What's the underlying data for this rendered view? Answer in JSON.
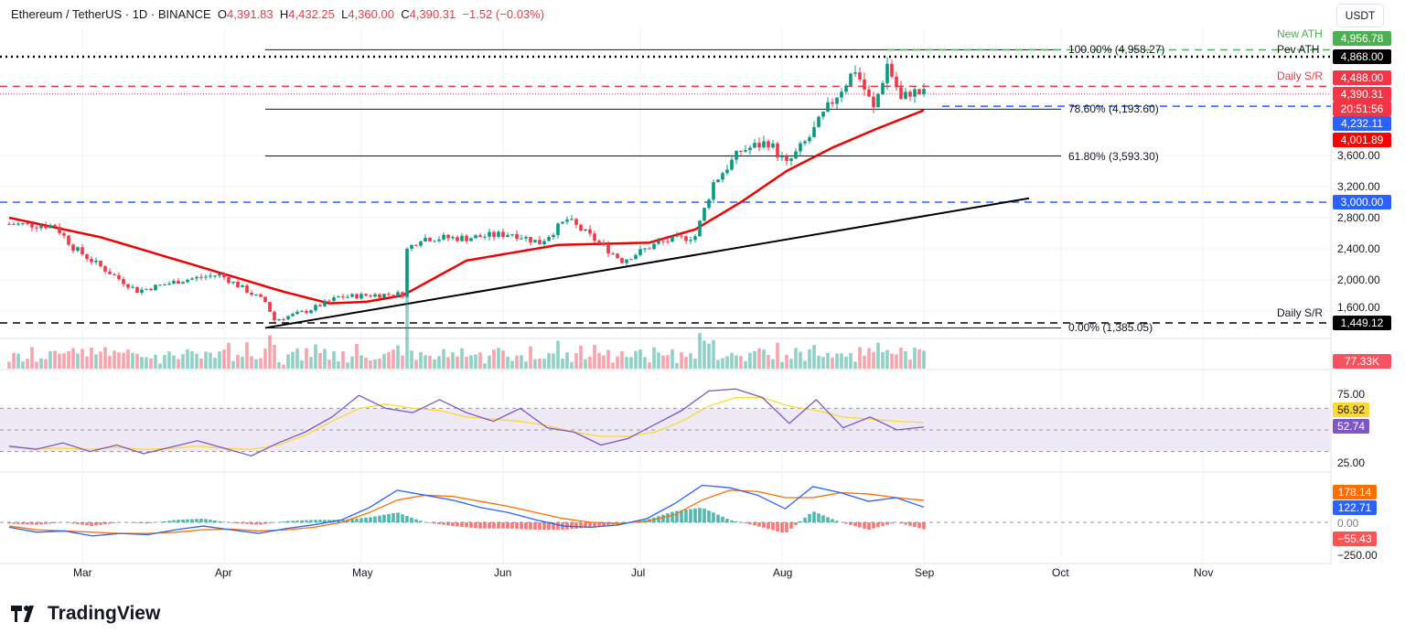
{
  "header": {
    "symbol": "Ethereum / TetherUS · 1D · BINANCE",
    "o_label": "O",
    "open": "4,391.83",
    "h_label": "H",
    "high": "4,432.25",
    "l_label": "L",
    "low": "4,360.00",
    "c_label": "C",
    "close": "4,390.31",
    "change": "−1.52 (−0.03%)"
  },
  "currency": "USDT",
  "logo": "TradingView",
  "chart_data": {
    "type": "candlestick",
    "title": "Ethereum / TetherUS · 1D · BINANCE",
    "ylim": [
      1385,
      4958
    ],
    "y_ticks": [
      "3,600.00",
      "3,200.00",
      "2,800.00",
      "2,400.00",
      "2,000.00",
      "1,600.00"
    ],
    "y_tick_values": [
      3600,
      3200,
      2800,
      2400,
      2000,
      1600
    ],
    "x_ticks": [
      "Mar",
      "Apr",
      "May",
      "Jun",
      "Jul",
      "Aug",
      "Sep",
      "Oct",
      "Nov"
    ],
    "x_tick_days": [
      16,
      47,
      77,
      108,
      138,
      169,
      200,
      230,
      261
    ],
    "close_path_days": [
      0,
      10,
      14,
      18,
      28,
      38,
      46,
      52,
      56,
      58,
      65,
      72,
      80,
      86,
      86.5,
      90,
      100,
      110,
      116,
      122,
      128,
      134,
      142,
      150,
      154,
      160,
      166,
      170,
      175,
      180,
      185,
      189,
      192,
      194,
      195,
      197,
      200
    ],
    "close_path_prices": [
      2720,
      2700,
      2420,
      2250,
      1860,
      2000,
      2070,
      1860,
      1720,
      1485,
      1600,
      1780,
      1810,
      1820,
      2365,
      2540,
      2540,
      2600,
      2480,
      2775,
      2520,
      2250,
      2480,
      2565,
      3250,
      3660,
      3775,
      3480,
      3835,
      4300,
      4710,
      4190,
      4775,
      4480,
      4300,
      4420,
      4390
    ],
    "ma_days": [
      0,
      20,
      40,
      60,
      70,
      78,
      86,
      100,
      120,
      140,
      150,
      160,
      170,
      180,
      190,
      200
    ],
    "ma_prices": [
      2800,
      2550,
      2200,
      1850,
      1700,
      1720,
      1800,
      2250,
      2450,
      2480,
      2650,
      3000,
      3400,
      3700,
      3950,
      4180
    ],
    "trendline": {
      "from": {
        "day": 56,
        "price": 1385
      },
      "to": {
        "day": 223,
        "price": 3050
      }
    },
    "fib_levels": [
      {
        "label": "100.00% (4,958.27)",
        "price": 4958.27
      },
      {
        "label": "78.60% (4,193.60)",
        "price": 4193.6
      },
      {
        "label": "61.80% (3,593.30)",
        "price": 3593.3
      },
      {
        "label": "0.00% (1,385.05)",
        "price": 1385.05
      }
    ],
    "horizontal_levels": [
      {
        "label": "New ATH",
        "price": 4956.78,
        "value": "4,956.78",
        "color": "#4caf50",
        "style": "dashed"
      },
      {
        "label": "Pev ATH",
        "price": 4868,
        "value": "4,868.00",
        "color": "#000000",
        "style": "dotted"
      },
      {
        "label": "Daily S/R",
        "price": 4488,
        "value": "4,488.00",
        "color": "#f23645",
        "style": "dashed"
      },
      {
        "label": "",
        "price": 4232.11,
        "value": "4,232.11",
        "color": "#2962ff",
        "style": "dashed"
      },
      {
        "label": "",
        "price": 3000,
        "value": "3,000.00",
        "color": "#2962ff",
        "style": "dashed"
      },
      {
        "label": "Daily S/R",
        "price": 1449.12,
        "value": "1,449.12",
        "color": "#000000",
        "style": "dashed"
      }
    ],
    "last_price": "4,390.31",
    "countdown": "20:51:56",
    "ma_value": "4,001.89",
    "volume": {
      "last": "77.33K"
    },
    "rsi": {
      "ticks": [
        "75.00",
        "25.00"
      ],
      "rsi": "52.74",
      "ma": "56.92",
      "rsi_path": [
        35,
        32,
        38,
        30,
        36,
        28,
        34,
        40,
        33,
        26,
        38,
        48,
        62,
        82,
        70,
        66,
        78,
        66,
        58,
        70,
        52,
        48,
        36,
        42,
        55,
        68,
        86,
        88,
        80,
        56,
        78,
        52,
        62,
        50,
        52.74
      ],
      "ma_path": [
        34,
        33,
        33,
        32,
        34,
        32,
        33,
        35,
        33,
        32,
        36,
        45,
        58,
        70,
        74,
        70,
        68,
        62,
        60,
        58,
        54,
        48,
        44,
        44,
        48,
        58,
        72,
        80,
        80,
        72,
        68,
        62,
        60,
        58,
        56.92
      ]
    },
    "macd": {
      "ticks": [
        "0.00",
        "−250.00"
      ],
      "macd": "122.71",
      "signal": "178.14",
      "hist": "−55.43",
      "macd_path": [
        -40,
        -80,
        -70,
        -110,
        -90,
        -100,
        -60,
        -30,
        -60,
        -90,
        -50,
        -20,
        20,
        120,
        260,
        220,
        180,
        120,
        80,
        20,
        -30,
        -40,
        -20,
        30,
        150,
        300,
        280,
        220,
        110,
        290,
        240,
        170,
        200,
        122.71
      ],
      "signal_path": [
        -30,
        -60,
        -70,
        -80,
        -90,
        -90,
        -80,
        -60,
        -55,
        -70,
        -60,
        -40,
        0,
        80,
        180,
        220,
        210,
        170,
        130,
        80,
        30,
        0,
        -10,
        10,
        60,
        180,
        260,
        250,
        200,
        200,
        240,
        230,
        200,
        178.14
      ]
    }
  },
  "colors": {
    "up": "#089981",
    "down": "#f23645",
    "ma": "#f00000",
    "rsi": "#7e57c2",
    "rsi_ma": "#fdd835",
    "macd": "#2962ff",
    "signal": "#ff6d00"
  }
}
